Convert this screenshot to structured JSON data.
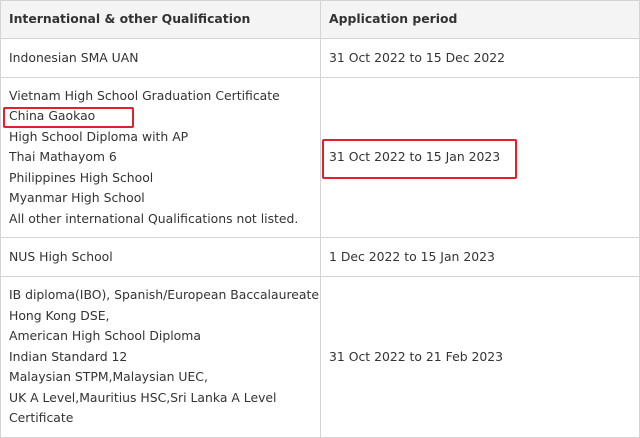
{
  "table": {
    "header": [
      "International & other Qualification",
      "Application period"
    ],
    "rows": [
      [
        [
          "Indonesian SMA UAN"
        ],
        "31 Oct 2022 to 15 Dec 2022"
      ],
      [
        [
          "Vietnam High School Graduation Certificate",
          "China Gaokao",
          "High School Diploma with AP",
          "Thai Mathayom 6",
          "Philippines High School",
          "Myanmar High School",
          "All other international Qualifications not listed."
        ],
        "31 Oct 2022 to 15 Jan 2023"
      ],
      [
        [
          "NUS High School"
        ],
        "1 Dec 2022 to 15 Jan 2023"
      ],
      [
        [
          "IB diploma(IBO), Spanish/European Baccalaureate,",
          "Hong Kong DSE,",
          "American High School Diploma",
          "Indian Standard 12",
          "Malaysian STPM,Malaysian UEC,",
          "UK A Level,Mauritius HSC,Sri Lanka A Level",
          "Certificate"
        ],
        "31 Oct 2022 to 21 Feb 2023"
      ]
    ]
  }
}
